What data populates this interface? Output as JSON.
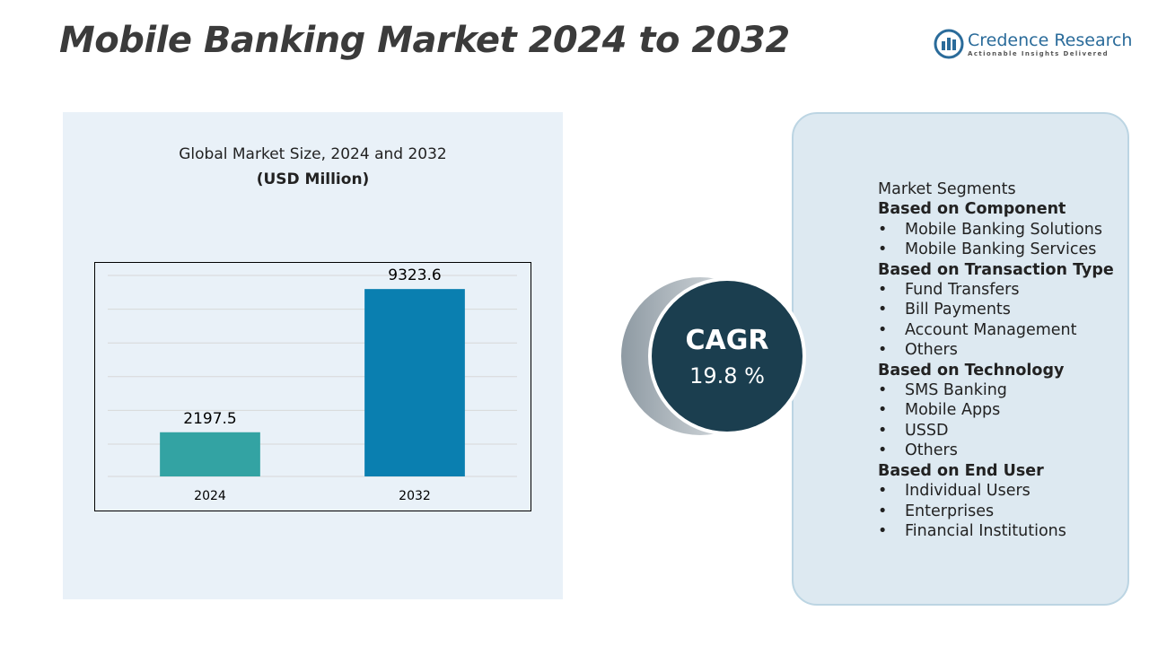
{
  "title": "Mobile Banking Market 2024 to 2032",
  "logo": {
    "name": "Credence Research",
    "tagline": "Actionable Insights Delivered"
  },
  "chart_data": {
    "type": "bar",
    "title": "Global Market Size, 2024 and 2032",
    "subtitle": "(USD Million)",
    "categories": [
      "2024",
      "2032"
    ],
    "values": [
      2197.5,
      9323.6
    ],
    "colors": [
      "#33a3a3",
      "#0a7fb0"
    ],
    "ylim": [
      0,
      10000
    ]
  },
  "cagr": {
    "label": "CAGR",
    "value": "19.8 %"
  },
  "segments": {
    "heading": "Market Segments",
    "groups": [
      {
        "title": "Based on Component",
        "items": [
          "Mobile Banking Solutions",
          "Mobile Banking Services"
        ]
      },
      {
        "title": "Based on Transaction Type",
        "items": [
          "Fund Transfers",
          "Bill Payments",
          "Account Management",
          "Others"
        ]
      },
      {
        "title": "Based on Technology",
        "items": [
          "SMS Banking",
          "Mobile Apps",
          "USSD",
          "Others"
        ]
      },
      {
        "title": "Based on End User",
        "items": [
          "Individual Users",
          "Enterprises",
          "Financial Institutions"
        ]
      }
    ]
  }
}
